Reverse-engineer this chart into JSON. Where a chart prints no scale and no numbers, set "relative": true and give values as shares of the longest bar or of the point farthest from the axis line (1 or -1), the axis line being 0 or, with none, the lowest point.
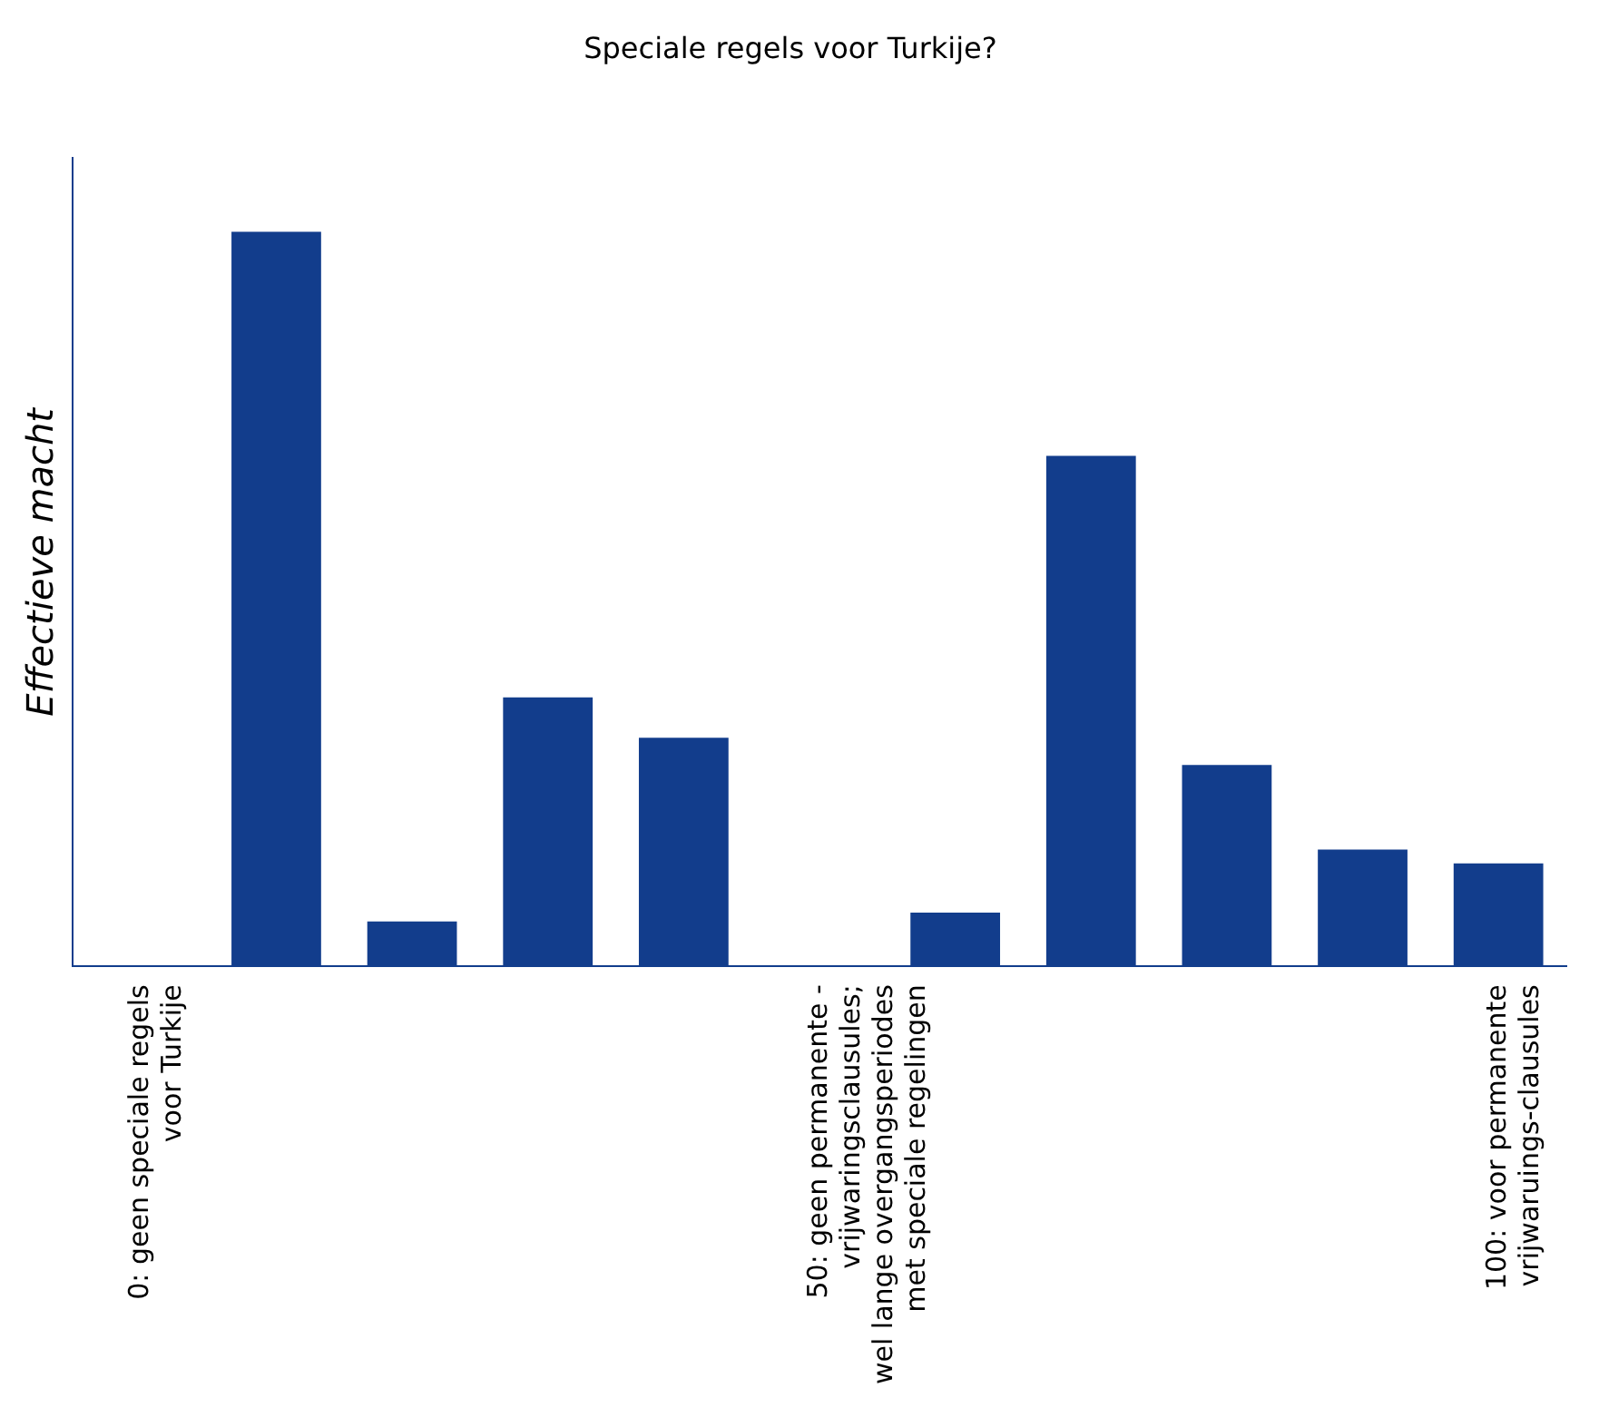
{
  "chart_data": {
    "type": "bar",
    "title": "Speciale regels voor Turkije?",
    "ylabel": "Effectieve macht",
    "categories": [
      "0: geen speciale regels\nvoor Turkije",
      null,
      null,
      null,
      null,
      "50: geen permanente -\nvrijwaringsclausules;\nwel lange overgangsperiodes\nmet speciale regelingen",
      null,
      null,
      null,
      null,
      "100: voor permanente\nvrijwaruings-clausules"
    ],
    "values": [
      0,
      1,
      0.061,
      0.366,
      0.311,
      0,
      0.073,
      0.695,
      0.274,
      0.159,
      0.14
    ],
    "color": "#123d8c",
    "relative": true,
    "tick_labels": "x"
  }
}
